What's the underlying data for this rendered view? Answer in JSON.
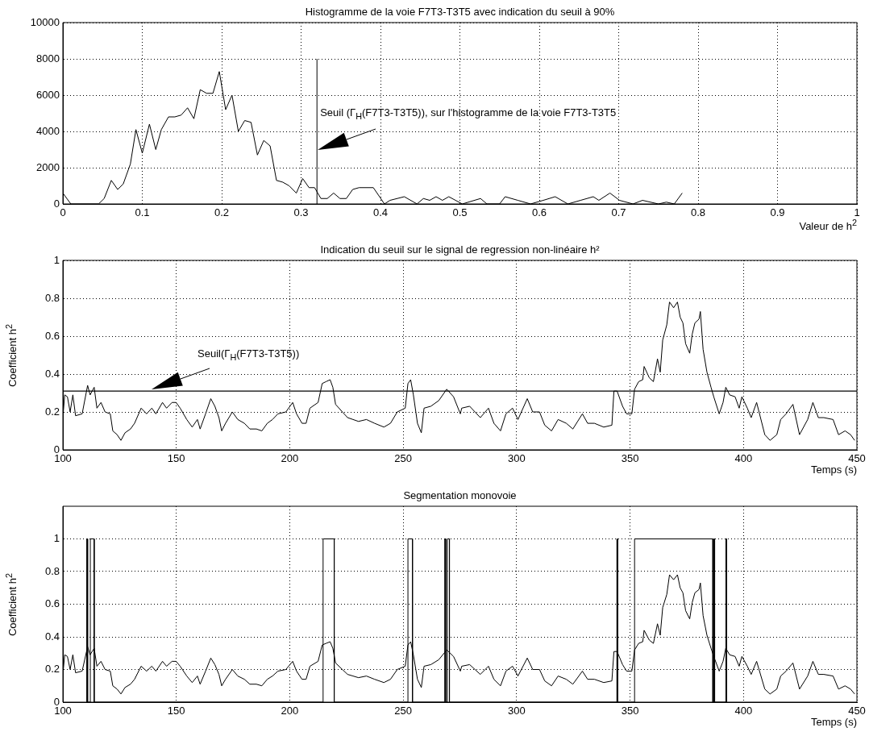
{
  "chart_data": [
    {
      "type": "line",
      "title": "Histogramme de la voie F7T3-T3T5 avec indication du seuil à 90%",
      "xlabel": "Valeur de h$^{2}$",
      "x": [
        0,
        0.01,
        0.045,
        0.052,
        0.061,
        0.069,
        0.076,
        0.085,
        0.092,
        0.1,
        0.109,
        0.117,
        0.124,
        0.133,
        0.141,
        0.149,
        0.157,
        0.165,
        0.173,
        0.181,
        0.189,
        0.197,
        0.205,
        0.213,
        0.221,
        0.229,
        0.237,
        0.245,
        0.253,
        0.261,
        0.269,
        0.277,
        0.285,
        0.294,
        0.302,
        0.31,
        0.317,
        0.325,
        0.333,
        0.341,
        0.349,
        0.357,
        0.365,
        0.373,
        0.391,
        0.405,
        0.412,
        0.43,
        0.446,
        0.454,
        0.462,
        0.47,
        0.478,
        0.486,
        0.503,
        0.526,
        0.534,
        0.55,
        0.557,
        0.573,
        0.589,
        0.605,
        0.62,
        0.636,
        0.652,
        0.668,
        0.675,
        0.689,
        0.701,
        0.718,
        0.73,
        0.75,
        0.76,
        0.77,
        0.78
      ],
      "series": [
        {
          "color": "#000000",
          "values": [
            600,
            0,
            0,
            300,
            1300,
            800,
            1100,
            2200,
            4100,
            2800,
            4400,
            3000,
            4100,
            4800,
            4800,
            4900,
            5300,
            4700,
            6300,
            6100,
            6100,
            7300,
            5200,
            6000,
            4000,
            4600,
            4500,
            2700,
            3500,
            3200,
            1300,
            1200,
            1000,
            600,
            1400,
            900,
            900,
            300,
            300,
            600,
            300,
            300,
            800,
            900,
            900,
            0,
            200,
            400,
            0,
            300,
            200,
            400,
            200,
            400,
            0,
            300,
            0,
            0,
            400,
            200,
            0,
            200,
            400,
            0,
            200,
            400,
            200,
            600,
            200,
            0,
            200,
            0,
            100,
            0,
            600
          ]
        },
        {
          "type": "line",
          "color": "#000000",
          "x": [
            0.32,
            0.32
          ],
          "values": [
            0,
            8000
          ]
        }
      ],
      "xlim": [
        0,
        1
      ],
      "xticks": [
        0,
        0.1,
        0.2,
        0.3,
        0.4,
        0.5,
        0.6,
        0.7,
        0.8,
        0.9,
        1
      ],
      "ylim": [
        0,
        10000
      ],
      "yticks": [
        0,
        2000,
        4000,
        6000,
        8000,
        10000
      ],
      "grid": true,
      "annotations": [
        {
          "text": "Seuil (Γ$_{H}$(F7T3-T3T5)), sur l'histogramme de la voie F7T3-T3T5",
          "x": 0.324,
          "y": 5000
        }
      ]
    },
    {
      "type": "line",
      "title": "Indication du seuil sur le signal de regression non-linéaire h²",
      "xlabel": "Temps (s)",
      "ylabel": "Coefficient h$^{2}$",
      "x": [
        100.2,
        100.8,
        102,
        103.2,
        104.4,
        105.6,
        108.5,
        110.9,
        112,
        113.8,
        115,
        116.8,
        118.6,
        120.9,
        122,
        123.9,
        125.6,
        127.4,
        129.8,
        131.6,
        134.5,
        136.9,
        139.2,
        141,
        143.9,
        145.7,
        148.1,
        149.9,
        151.7,
        154.6,
        157,
        159.3,
        160.5,
        162.9,
        165.2,
        167,
        168.8,
        170,
        171.7,
        174.7,
        177.1,
        180,
        182.4,
        185.3,
        187.7,
        190.1,
        192.4,
        194.8,
        198.3,
        201.3,
        203,
        205.4,
        207.2,
        208.9,
        212.5,
        214.3,
        216,
        217.8,
        219,
        220.2,
        223.2,
        225.5,
        227.9,
        230.3,
        233.8,
        237.4,
        241.5,
        244.4,
        247.4,
        250.9,
        252.1,
        253.3,
        254.5,
        256.3,
        258,
        259.2,
        262.2,
        265.7,
        269.2,
        272.2,
        275.2,
        275.8,
        279.3,
        284,
        287.6,
        290,
        292.9,
        295.3,
        298.2,
        300.6,
        304.7,
        307.1,
        310.1,
        312.4,
        315.4,
        318.3,
        321.9,
        324.8,
        329,
        331.3,
        334.3,
        338.4,
        342,
        342.9,
        344.3,
        346.7,
        348.5,
        350.8,
        352,
        353.8,
        355.6,
        356.2,
        358.5,
        360.3,
        362.1,
        363.3,
        364.4,
        366.2,
        367.4,
        369.2,
        370.9,
        372.1,
        373.3,
        374.5,
        376.3,
        377.4,
        378.6,
        380.4,
        381,
        382.2,
        383.9,
        385.7,
        386.9,
        389.3,
        391,
        392.2,
        393.9,
        396.3,
        398.1,
        399.3,
        401.7,
        403.4,
        405.8,
        409.4,
        411.7,
        414.7,
        416.4,
        418.8,
        421.8,
        424.7,
        428.3,
        430.6,
        433,
        435.4,
        439.5,
        441.9,
        444.8,
        447.2,
        449
      ],
      "series": [
        {
          "color": "#000000",
          "values": [
            0.2,
            0.29,
            0.28,
            0.2,
            0.29,
            0.18,
            0.19,
            0.34,
            0.29,
            0.33,
            0.22,
            0.25,
            0.2,
            0.19,
            0.1,
            0.08,
            0.05,
            0.09,
            0.11,
            0.14,
            0.22,
            0.19,
            0.22,
            0.19,
            0.25,
            0.22,
            0.25,
            0.25,
            0.22,
            0.16,
            0.12,
            0.16,
            0.11,
            0.19,
            0.27,
            0.23,
            0.17,
            0.1,
            0.14,
            0.2,
            0.16,
            0.14,
            0.11,
            0.11,
            0.1,
            0.14,
            0.16,
            0.19,
            0.2,
            0.25,
            0.19,
            0.14,
            0.14,
            0.22,
            0.25,
            0.35,
            0.36,
            0.37,
            0.33,
            0.24,
            0.2,
            0.17,
            0.16,
            0.15,
            0.16,
            0.14,
            0.12,
            0.14,
            0.2,
            0.22,
            0.35,
            0.37,
            0.29,
            0.14,
            0.09,
            0.22,
            0.23,
            0.26,
            0.32,
            0.28,
            0.19,
            0.22,
            0.23,
            0.17,
            0.22,
            0.14,
            0.1,
            0.19,
            0.22,
            0.16,
            0.27,
            0.2,
            0.2,
            0.13,
            0.1,
            0.16,
            0.14,
            0.11,
            0.19,
            0.14,
            0.14,
            0.12,
            0.13,
            0.31,
            0.31,
            0.23,
            0.19,
            0.19,
            0.32,
            0.36,
            0.37,
            0.44,
            0.38,
            0.36,
            0.48,
            0.41,
            0.58,
            0.66,
            0.78,
            0.75,
            0.78,
            0.7,
            0.67,
            0.56,
            0.51,
            0.61,
            0.67,
            0.69,
            0.73,
            0.53,
            0.41,
            0.33,
            0.28,
            0.19,
            0.25,
            0.33,
            0.29,
            0.28,
            0.22,
            0.28,
            0.22,
            0.17,
            0.25,
            0.08,
            0.05,
            0.08,
            0.16,
            0.19,
            0.24,
            0.08,
            0.16,
            0.25,
            0.17,
            0.17,
            0.16,
            0.08,
            0.1,
            0.08,
            0.05
          ]
        }
      ],
      "xlim": [
        100,
        450
      ],
      "xticks": [
        100,
        150,
        200,
        250,
        300,
        350,
        400,
        450
      ],
      "ylim": [
        0,
        1
      ],
      "yticks": [
        0,
        0.2,
        0.4,
        0.6,
        0.8,
        1
      ],
      "grid": true,
      "ref_lines": [
        {
          "axis": "y",
          "value": 0.31,
          "color": "#000000"
        }
      ],
      "annotations": [
        "Seuil(Γ$_{H}$(F7T3-T3T5))"
      ]
    },
    {
      "type": "line",
      "title": "Segmentation monovoie",
      "xlabel": "Temps (s)",
      "ylabel": "Coefficient h$^{2}$",
      "x": [
        100.2,
        100.8,
        102,
        103.2,
        104.4,
        105.6,
        108.5,
        110.9,
        112,
        113.8,
        115,
        116.8,
        118.6,
        120.9,
        122,
        123.9,
        125.6,
        127.4,
        129.8,
        131.6,
        134.5,
        136.9,
        139.2,
        141,
        143.9,
        145.7,
        148.1,
        149.9,
        151.7,
        154.6,
        157,
        159.3,
        160.5,
        162.9,
        165.2,
        167,
        168.8,
        170,
        171.7,
        174.7,
        177.1,
        180,
        182.4,
        185.3,
        187.7,
        190.1,
        192.4,
        194.8,
        198.3,
        201.3,
        203,
        205.4,
        207.2,
        208.9,
        212.5,
        214.3,
        216,
        217.8,
        219,
        220.2,
        223.2,
        225.5,
        227.9,
        230.3,
        233.8,
        237.4,
        241.5,
        244.4,
        247.4,
        250.9,
        252.1,
        253.3,
        254.5,
        256.3,
        258,
        259.2,
        262.2,
        265.7,
        269.2,
        272.2,
        275.2,
        275.8,
        279.3,
        284,
        287.6,
        290,
        292.9,
        295.3,
        298.2,
        300.6,
        304.7,
        307.1,
        310.1,
        312.4,
        315.4,
        318.3,
        321.9,
        324.8,
        329,
        331.3,
        334.3,
        338.4,
        342,
        342.9,
        344.3,
        346.7,
        348.5,
        350.8,
        352,
        353.8,
        355.6,
        356.2,
        358.5,
        360.3,
        362.1,
        363.3,
        364.4,
        366.2,
        367.4,
        369.2,
        370.9,
        372.1,
        373.3,
        374.5,
        376.3,
        377.4,
        378.6,
        380.4,
        381,
        382.2,
        383.9,
        385.7,
        386.9,
        389.3,
        391,
        392.2,
        393.9,
        396.3,
        398.1,
        399.3,
        401.7,
        403.4,
        405.8,
        409.4,
        411.7,
        414.7,
        416.4,
        418.8,
        421.8,
        424.7,
        428.3,
        430.6,
        433,
        435.4,
        439.5,
        441.9,
        444.8,
        447.2,
        449
      ],
      "series": [
        {
          "color": "#000000",
          "values": [
            0.2,
            0.29,
            0.28,
            0.2,
            0.29,
            0.18,
            0.19,
            0.34,
            0.29,
            0.33,
            0.22,
            0.25,
            0.2,
            0.19,
            0.1,
            0.08,
            0.05,
            0.09,
            0.11,
            0.14,
            0.22,
            0.19,
            0.22,
            0.19,
            0.25,
            0.22,
            0.25,
            0.25,
            0.22,
            0.16,
            0.12,
            0.16,
            0.11,
            0.19,
            0.27,
            0.23,
            0.17,
            0.1,
            0.14,
            0.2,
            0.16,
            0.14,
            0.11,
            0.11,
            0.1,
            0.14,
            0.16,
            0.19,
            0.2,
            0.25,
            0.19,
            0.14,
            0.14,
            0.22,
            0.25,
            0.35,
            0.36,
            0.37,
            0.33,
            0.24,
            0.2,
            0.17,
            0.16,
            0.15,
            0.16,
            0.14,
            0.12,
            0.14,
            0.2,
            0.22,
            0.35,
            0.37,
            0.29,
            0.14,
            0.09,
            0.22,
            0.23,
            0.26,
            0.32,
            0.28,
            0.19,
            0.22,
            0.23,
            0.17,
            0.22,
            0.14,
            0.1,
            0.19,
            0.22,
            0.16,
            0.27,
            0.2,
            0.2,
            0.13,
            0.1,
            0.16,
            0.14,
            0.11,
            0.19,
            0.14,
            0.14,
            0.12,
            0.13,
            0.31,
            0.31,
            0.23,
            0.19,
            0.19,
            0.32,
            0.36,
            0.37,
            0.44,
            0.38,
            0.36,
            0.48,
            0.41,
            0.58,
            0.66,
            0.78,
            0.75,
            0.78,
            0.7,
            0.67,
            0.56,
            0.51,
            0.61,
            0.67,
            0.69,
            0.73,
            0.53,
            0.41,
            0.33,
            0.28,
            0.19,
            0.25,
            0.33,
            0.29,
            0.28,
            0.22,
            0.28,
            0.22,
            0.17,
            0.25,
            0.08,
            0.05,
            0.08,
            0.16,
            0.19,
            0.24,
            0.08,
            0.16,
            0.25,
            0.17,
            0.17,
            0.16,
            0.08,
            0.1,
            0.08,
            0.05
          ]
        },
        {
          "type": "line",
          "color": "#000000",
          "x": [
            110.5,
            110.5,
            110.9,
            110.9,
            112.1,
            112.1,
            113.8,
            113.8,
            214.7,
            214.7,
            219.6,
            219.6,
            252.1,
            252.1,
            254.1,
            254.1,
            268.3,
            268.3,
            268.8,
            268.8,
            269.5,
            269.5,
            270.4,
            270.4,
            344.2,
            344.2,
            344.5,
            344.5,
            352,
            352,
            386.5,
            386.5,
            386.9,
            386.9,
            387.3,
            387.3,
            392.2,
            392.2,
            392.6,
            392.6
          ],
          "values": [
            0,
            1,
            1,
            0,
            0,
            1,
            1,
            0,
            0,
            1,
            1,
            0,
            0,
            1,
            1,
            0,
            0,
            1,
            1,
            0,
            0,
            1,
            1,
            0,
            0,
            1,
            1,
            0,
            0,
            1,
            1,
            0,
            0,
            1,
            1,
            0,
            0,
            1,
            1,
            0
          ]
        }
      ],
      "xlim": [
        100,
        450
      ],
      "xticks": [
        100,
        150,
        200,
        250,
        300,
        350,
        400,
        450
      ],
      "ylim": [
        0,
        1.2
      ],
      "yticks": [
        0,
        0.2,
        0.4,
        0.6,
        0.8,
        1
      ],
      "grid": true
    }
  ]
}
